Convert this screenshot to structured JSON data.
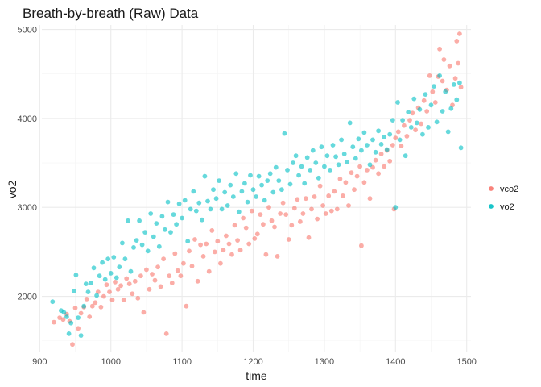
{
  "chart_data": {
    "type": "scatter",
    "title": "Breath-by-breath (Raw) Data",
    "xlabel": "time",
    "ylabel": "vo2",
    "xlim": [
      903,
      1506
    ],
    "ylim": [
      1380,
      5050
    ],
    "x_ticks": [
      900,
      1000,
      1100,
      1200,
      1300,
      1400,
      1500
    ],
    "y_ticks": [
      2000,
      3000,
      4000,
      5000
    ],
    "grid": true,
    "legend_position": "right",
    "series": [
      {
        "name": "vco2",
        "color": "#F8766D",
        "points": [
          [
            920,
            1710
          ],
          [
            928,
            1760
          ],
          [
            933,
            1740
          ],
          [
            938,
            1800
          ],
          [
            942,
            1720
          ],
          [
            946,
            1460
          ],
          [
            950,
            1870
          ],
          [
            954,
            1640
          ],
          [
            958,
            1810
          ],
          [
            962,
            1880
          ],
          [
            966,
            1970
          ],
          [
            970,
            1770
          ],
          [
            974,
            1890
          ],
          [
            978,
            1930
          ],
          [
            982,
            2050
          ],
          [
            986,
            1880
          ],
          [
            990,
            2000
          ],
          [
            994,
            2130
          ],
          [
            998,
            2050
          ],
          [
            1002,
            1960
          ],
          [
            1006,
            2160
          ],
          [
            1010,
            2080
          ],
          [
            1014,
            2120
          ],
          [
            1018,
            1960
          ],
          [
            1022,
            2200
          ],
          [
            1026,
            2140
          ],
          [
            1030,
            2030
          ],
          [
            1034,
            2170
          ],
          [
            1038,
            1980
          ],
          [
            1042,
            2230
          ],
          [
            1046,
            1820
          ],
          [
            1050,
            2300
          ],
          [
            1054,
            2080
          ],
          [
            1058,
            2250
          ],
          [
            1062,
            2180
          ],
          [
            1066,
            2330
          ],
          [
            1070,
            2110
          ],
          [
            1074,
            2420
          ],
          [
            1078,
            1580
          ],
          [
            1082,
            2230
          ],
          [
            1086,
            2150
          ],
          [
            1090,
            2480
          ],
          [
            1094,
            2290
          ],
          [
            1098,
            2230
          ],
          [
            1102,
            2370
          ],
          [
            1106,
            1890
          ],
          [
            1110,
            2510
          ],
          [
            1114,
            2340
          ],
          [
            1118,
            2640
          ],
          [
            1122,
            2170
          ],
          [
            1126,
            2580
          ],
          [
            1130,
            2450
          ],
          [
            1134,
            2590
          ],
          [
            1138,
            2280
          ],
          [
            1142,
            2740
          ],
          [
            1146,
            2500
          ],
          [
            1150,
            2620
          ],
          [
            1154,
            2370
          ],
          [
            1158,
            2520
          ],
          [
            1162,
            2680
          ],
          [
            1166,
            2590
          ],
          [
            1170,
            2470
          ],
          [
            1174,
            2800
          ],
          [
            1178,
            2630
          ],
          [
            1182,
            2520
          ],
          [
            1186,
            2880
          ],
          [
            1190,
            2770
          ],
          [
            1194,
            2590
          ],
          [
            1198,
            2960
          ],
          [
            1202,
            2650
          ],
          [
            1206,
            2700
          ],
          [
            1210,
            2920
          ],
          [
            1214,
            2810
          ],
          [
            1218,
            2470
          ],
          [
            1222,
            3000
          ],
          [
            1226,
            2850
          ],
          [
            1230,
            2780
          ],
          [
            1234,
            2450
          ],
          [
            1238,
            2930
          ],
          [
            1242,
            3050
          ],
          [
            1246,
            2920
          ],
          [
            1250,
            2640
          ],
          [
            1254,
            2800
          ],
          [
            1258,
            2990
          ],
          [
            1262,
            3090
          ],
          [
            1266,
            2840
          ],
          [
            1270,
            2930
          ],
          [
            1274,
            3100
          ],
          [
            1278,
            2660
          ],
          [
            1282,
            2980
          ],
          [
            1286,
            3120
          ],
          [
            1290,
            2870
          ],
          [
            1294,
            3240
          ],
          [
            1298,
            3020
          ],
          [
            1302,
            2930
          ],
          [
            1306,
            3130
          ],
          [
            1310,
            2960
          ],
          [
            1314,
            3180
          ],
          [
            1318,
            2980
          ],
          [
            1322,
            3320
          ],
          [
            1326,
            3130
          ],
          [
            1330,
            3280
          ],
          [
            1334,
            3020
          ],
          [
            1338,
            3390
          ],
          [
            1342,
            3200
          ],
          [
            1346,
            3350
          ],
          [
            1350,
            3460
          ],
          [
            1352,
            2570
          ],
          [
            1356,
            3280
          ],
          [
            1360,
            3420
          ],
          [
            1364,
            3100
          ],
          [
            1368,
            3450
          ],
          [
            1372,
            3530
          ],
          [
            1376,
            3380
          ],
          [
            1380,
            3600
          ],
          [
            1384,
            3460
          ],
          [
            1388,
            3640
          ],
          [
            1392,
            3520
          ],
          [
            1396,
            3700
          ],
          [
            1398,
            2980
          ],
          [
            1400,
            3780
          ],
          [
            1404,
            3850
          ],
          [
            1408,
            3690
          ],
          [
            1412,
            3920
          ],
          [
            1416,
            3800
          ],
          [
            1420,
            3980
          ],
          [
            1424,
            4060
          ],
          [
            1428,
            3870
          ],
          [
            1432,
            4120
          ],
          [
            1436,
            3940
          ],
          [
            1440,
            4200
          ],
          [
            1444,
            4080
          ],
          [
            1448,
            4480
          ],
          [
            1452,
            4300
          ],
          [
            1456,
            4180
          ],
          [
            1460,
            4470
          ],
          [
            1462,
            4780
          ],
          [
            1466,
            4420
          ],
          [
            1468,
            4660
          ],
          [
            1472,
            4320
          ],
          [
            1476,
            4590
          ],
          [
            1480,
            4150
          ],
          [
            1484,
            4450
          ],
          [
            1486,
            4870
          ],
          [
            1488,
            4620
          ],
          [
            1490,
            4950
          ],
          [
            1492,
            4350
          ]
        ]
      },
      {
        "name": "vo2",
        "color": "#00BFC4",
        "points": [
          [
            918,
            1940
          ],
          [
            930,
            1840
          ],
          [
            934,
            1820
          ],
          [
            938,
            1770
          ],
          [
            941,
            1580
          ],
          [
            944,
            1700
          ],
          [
            948,
            2060
          ],
          [
            951,
            2240
          ],
          [
            954,
            1760
          ],
          [
            958,
            1560
          ],
          [
            962,
            1890
          ],
          [
            965,
            2140
          ],
          [
            968,
            2050
          ],
          [
            972,
            2150
          ],
          [
            976,
            2320
          ],
          [
            980,
            2010
          ],
          [
            984,
            2230
          ],
          [
            988,
            2380
          ],
          [
            992,
            2190
          ],
          [
            996,
            2420
          ],
          [
            1000,
            2260
          ],
          [
            1004,
            2440
          ],
          [
            1008,
            2210
          ],
          [
            1012,
            2330
          ],
          [
            1016,
            2600
          ],
          [
            1020,
            2420
          ],
          [
            1024,
            2850
          ],
          [
            1028,
            2280
          ],
          [
            1032,
            2550
          ],
          [
            1036,
            2630
          ],
          [
            1040,
            2850
          ],
          [
            1044,
            2580
          ],
          [
            1048,
            2720
          ],
          [
            1052,
            2510
          ],
          [
            1056,
            2930
          ],
          [
            1060,
            2670
          ],
          [
            1064,
            2820
          ],
          [
            1068,
            2560
          ],
          [
            1072,
            2900
          ],
          [
            1076,
            2750
          ],
          [
            1080,
            3060
          ],
          [
            1084,
            2720
          ],
          [
            1088,
            2920
          ],
          [
            1092,
            2810
          ],
          [
            1096,
            3040
          ],
          [
            1100,
            2880
          ],
          [
            1104,
            3080
          ],
          [
            1108,
            2620
          ],
          [
            1112,
            2980
          ],
          [
            1116,
            3180
          ],
          [
            1120,
            2960
          ],
          [
            1124,
            3050
          ],
          [
            1128,
            2860
          ],
          [
            1132,
            3350
          ],
          [
            1136,
            3070
          ],
          [
            1140,
            2980
          ],
          [
            1144,
            3200
          ],
          [
            1148,
            3100
          ],
          [
            1152,
            3300
          ],
          [
            1156,
            2980
          ],
          [
            1160,
            3170
          ],
          [
            1164,
            3020
          ],
          [
            1168,
            3250
          ],
          [
            1172,
            3120
          ],
          [
            1176,
            3380
          ],
          [
            1180,
            2950
          ],
          [
            1184,
            3180
          ],
          [
            1188,
            3270
          ],
          [
            1192,
            3060
          ],
          [
            1196,
            3360
          ],
          [
            1200,
            3200
          ],
          [
            1204,
            3120
          ],
          [
            1208,
            3350
          ],
          [
            1212,
            3250
          ],
          [
            1216,
            3080
          ],
          [
            1220,
            3300
          ],
          [
            1224,
            3380
          ],
          [
            1228,
            3170
          ],
          [
            1232,
            3450
          ],
          [
            1236,
            3300
          ],
          [
            1240,
            3200
          ],
          [
            1244,
            3830
          ],
          [
            1248,
            3420
          ],
          [
            1252,
            3260
          ],
          [
            1256,
            3500
          ],
          [
            1260,
            3580
          ],
          [
            1264,
            3360
          ],
          [
            1268,
            3460
          ],
          [
            1272,
            3270
          ],
          [
            1276,
            3560
          ],
          [
            1280,
            3420
          ],
          [
            1284,
            3640
          ],
          [
            1288,
            3500
          ],
          [
            1292,
            3330
          ],
          [
            1296,
            3680
          ],
          [
            1300,
            3460
          ],
          [
            1304,
            3580
          ],
          [
            1308,
            3420
          ],
          [
            1312,
            3700
          ],
          [
            1316,
            3570
          ],
          [
            1320,
            3480
          ],
          [
            1324,
            3760
          ],
          [
            1328,
            3600
          ],
          [
            1332,
            3510
          ],
          [
            1336,
            3950
          ],
          [
            1340,
            3680
          ],
          [
            1344,
            3550
          ],
          [
            1348,
            3770
          ],
          [
            1352,
            3640
          ],
          [
            1356,
            3840
          ],
          [
            1360,
            3700
          ],
          [
            1364,
            3480
          ],
          [
            1368,
            3760
          ],
          [
            1372,
            3620
          ],
          [
            1376,
            3860
          ],
          [
            1380,
            3710
          ],
          [
            1384,
            3790
          ],
          [
            1388,
            3650
          ],
          [
            1392,
            3820
          ],
          [
            1396,
            3980
          ],
          [
            1400,
            3000
          ],
          [
            1403,
            4180
          ],
          [
            1406,
            3760
          ],
          [
            1410,
            3980
          ],
          [
            1414,
            3580
          ],
          [
            1418,
            4070
          ],
          [
            1422,
            3900
          ],
          [
            1426,
            4220
          ],
          [
            1430,
            3950
          ],
          [
            1434,
            4100
          ],
          [
            1438,
            3820
          ],
          [
            1442,
            4270
          ],
          [
            1446,
            3900
          ],
          [
            1450,
            4150
          ],
          [
            1454,
            4360
          ],
          [
            1458,
            3960
          ],
          [
            1462,
            4480
          ],
          [
            1466,
            4080
          ],
          [
            1470,
            4300
          ],
          [
            1474,
            3850
          ],
          [
            1478,
            4110
          ],
          [
            1482,
            4380
          ],
          [
            1486,
            4210
          ],
          [
            1490,
            4400
          ],
          [
            1492,
            3670
          ]
        ]
      }
    ]
  }
}
